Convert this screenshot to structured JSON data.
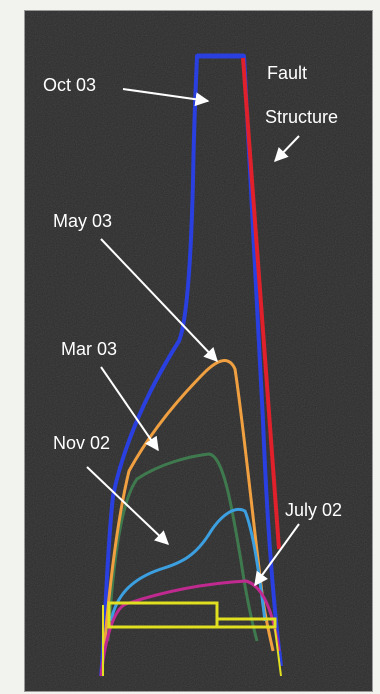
{
  "labels": {
    "oct03": "Oct 03",
    "fault": "Fault",
    "structure": "Structure",
    "may03": "May 03",
    "mar03": "Mar 03",
    "nov02": "Nov 02",
    "july02": "July 02"
  },
  "colors": {
    "background": "#2b2b2b",
    "oct03": "#2a3fe0",
    "fault": "#e0202a",
    "may03": "#f0a040",
    "mar03": "#3f7a4f",
    "nov02": "#3c9fe0",
    "july02": "#c02a90",
    "base": "#e0e020",
    "arrows": "#ffffff"
  }
}
